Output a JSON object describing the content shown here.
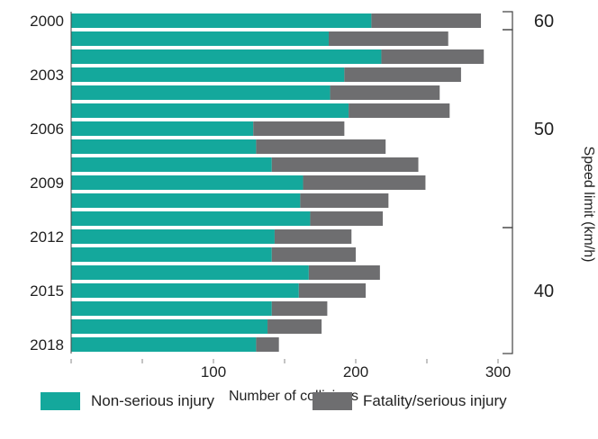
{
  "chart_data": {
    "type": "bar",
    "orientation": "horizontal",
    "stacked": true,
    "categories": [
      "2000",
      "2001",
      "2002",
      "2003",
      "2004",
      "2005",
      "2006",
      "2007",
      "2008",
      "2009",
      "2010",
      "2011",
      "2012",
      "2013",
      "2014",
      "2015",
      "2016",
      "2017",
      "2018"
    ],
    "year_labels_shown": [
      "2000",
      "2003",
      "2006",
      "2009",
      "2012",
      "2015",
      "2018"
    ],
    "series": [
      {
        "name": "Non-serious injury",
        "color": "#14a89c",
        "values": [
          211,
          181,
          218,
          192,
          182,
          195,
          128,
          130,
          141,
          163,
          161,
          168,
          143,
          141,
          167,
          160,
          141,
          138,
          130
        ]
      },
      {
        "name": "Fatality/serious injury",
        "color": "#6e6e70",
        "values": [
          77,
          84,
          72,
          82,
          77,
          71,
          64,
          91,
          103,
          86,
          62,
          51,
          54,
          59,
          50,
          47,
          39,
          38,
          16
        ]
      }
    ],
    "xlabel": "Number of collisions",
    "ylabel": "Speed limit (km/h)",
    "xlim": [
      0,
      300
    ],
    "xticks": [
      100,
      200,
      300
    ],
    "grid": false,
    "legend_position": "bottom",
    "speed_limit_groups": [
      {
        "label": "60",
        "from": "2000",
        "to": "2000"
      },
      {
        "label": "50",
        "from": "2001",
        "to": "2011"
      },
      {
        "label": "40",
        "from": "2012",
        "to": "2018"
      }
    ]
  }
}
